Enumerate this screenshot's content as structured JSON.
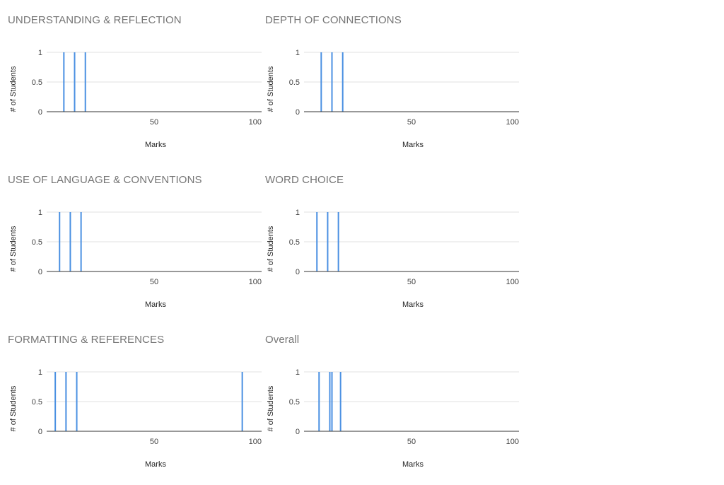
{
  "colors": {
    "bar": "#4a90e2",
    "grid": "#e0e0e0",
    "baseline": "#333333",
    "title": "#757575"
  },
  "chart_data": [
    {
      "type": "bar",
      "title": "UNDERSTANDING & REFLECTION",
      "xlabel": "Marks",
      "ylabel": "# of Students",
      "xlim": [
        0,
        100
      ],
      "ylim": [
        0,
        1
      ],
      "xticks": [
        "50",
        "100"
      ],
      "yticks": [
        "0",
        "0.5",
        "1"
      ],
      "x": [
        8,
        13,
        18
      ],
      "values": [
        1,
        1,
        1
      ]
    },
    {
      "type": "bar",
      "title": "DEPTH OF CONNECTIONS",
      "xlabel": "Marks",
      "ylabel": "# of Students",
      "xlim": [
        0,
        100
      ],
      "ylim": [
        0,
        1
      ],
      "xticks": [
        "50",
        "100"
      ],
      "yticks": [
        "0",
        "0.5",
        "1"
      ],
      "x": [
        8,
        13,
        18
      ],
      "values": [
        1,
        1,
        1
      ]
    },
    {
      "type": "bar",
      "title": "USE OF LANGUAGE & CONVENTIONS",
      "xlabel": "Marks",
      "ylabel": "# of Students",
      "xlim": [
        0,
        100
      ],
      "ylim": [
        0,
        1
      ],
      "xticks": [
        "50",
        "100"
      ],
      "yticks": [
        "0",
        "0.5",
        "1"
      ],
      "x": [
        6,
        11,
        16
      ],
      "values": [
        1,
        1,
        1
      ]
    },
    {
      "type": "bar",
      "title": "WORD CHOICE",
      "xlabel": "Marks",
      "ylabel": "# of Students",
      "xlim": [
        0,
        100
      ],
      "ylim": [
        0,
        1
      ],
      "xticks": [
        "50",
        "100"
      ],
      "yticks": [
        "0",
        "0.5",
        "1"
      ],
      "x": [
        6,
        11,
        16
      ],
      "values": [
        1,
        1,
        1
      ]
    },
    {
      "type": "bar",
      "title": "FORMATTING & REFERENCES",
      "xlabel": "Marks",
      "ylabel": "# of Students",
      "xlim": [
        0,
        100
      ],
      "ylim": [
        0,
        1
      ],
      "xticks": [
        "50",
        "100"
      ],
      "yticks": [
        "0",
        "0.5",
        "1"
      ],
      "x": [
        4,
        9,
        14,
        91
      ],
      "values": [
        1,
        1,
        1,
        1
      ]
    },
    {
      "type": "bar",
      "title": "Overall",
      "xlabel": "Marks",
      "ylabel": "# of Students",
      "xlim": [
        0,
        100
      ],
      "ylim": [
        0,
        1
      ],
      "xticks": [
        "50",
        "100"
      ],
      "yticks": [
        "0",
        "0.5",
        "1"
      ],
      "x": [
        7,
        12,
        13,
        17
      ],
      "values": [
        1,
        1,
        1,
        1
      ]
    }
  ]
}
